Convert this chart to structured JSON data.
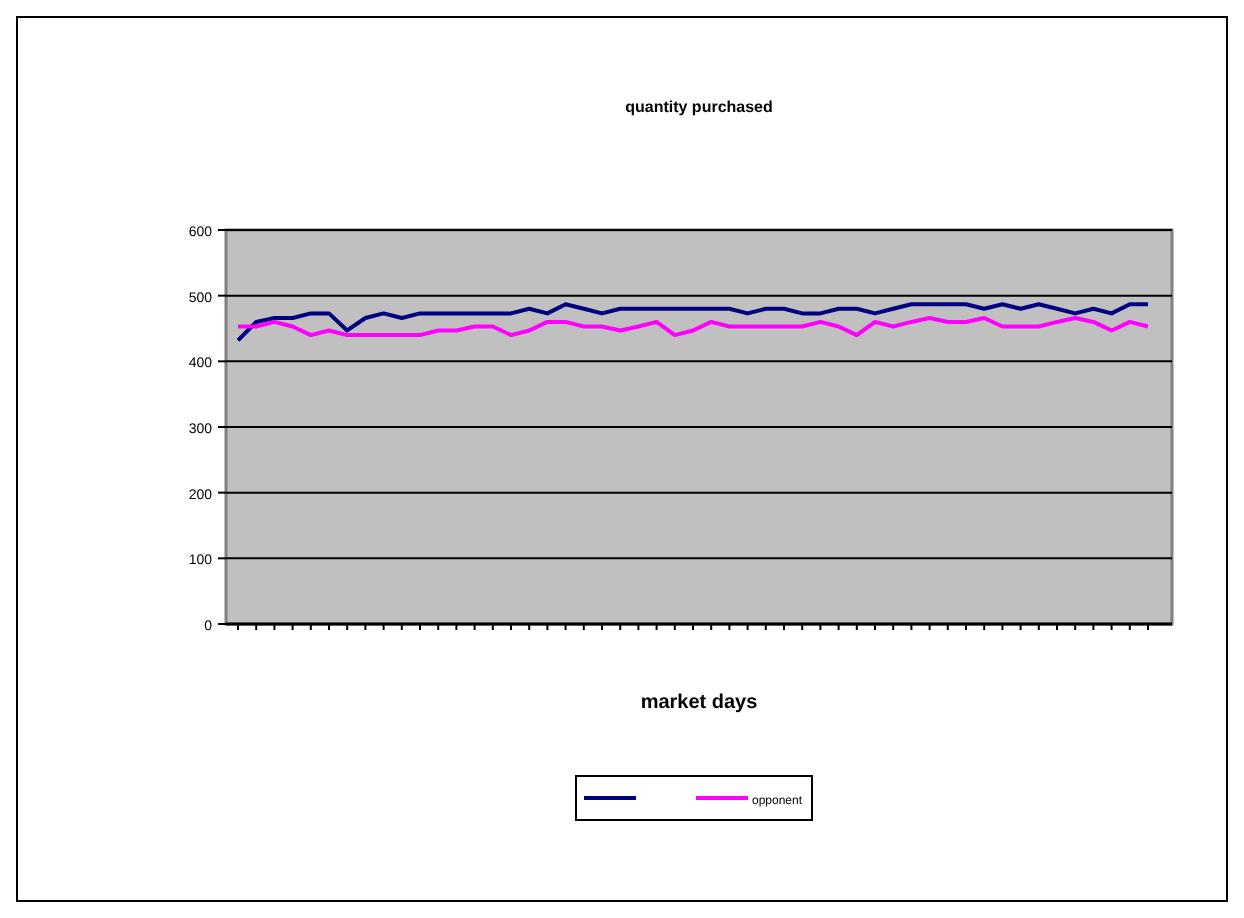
{
  "chart_data": {
    "type": "line",
    "title": "quantity purchased",
    "xlabel": "market days",
    "categories": [
      null,
      null,
      null,
      null,
      null,
      null,
      null,
      null,
      null,
      null,
      null,
      null,
      null,
      null,
      null,
      null,
      null,
      null,
      null,
      null,
      null,
      null,
      null,
      null,
      null,
      null,
      null,
      null,
      null,
      null,
      null,
      null,
      null,
      null,
      null,
      null,
      null,
      null,
      null,
      null,
      null,
      null,
      null,
      null,
      null,
      null,
      null,
      null,
      null,
      null,
      null
    ],
    "series": [
      {
        "color": "#000080",
        "values": [
          432,
          460,
          466,
          466,
          473,
          473,
          447,
          466,
          473,
          466,
          473,
          473,
          473,
          473,
          473,
          473,
          480,
          473,
          487,
          480,
          473,
          480,
          480,
          480,
          480,
          480,
          480,
          480,
          473,
          480,
          480,
          473,
          473,
          480,
          480,
          473,
          480,
          487,
          487,
          487,
          487,
          480,
          487,
          480,
          487,
          480,
          473,
          480,
          473,
          487,
          487
        ]
      },
      {
        "name": "opponent",
        "color": "#ff00ff",
        "values": [
          453,
          453,
          460,
          453,
          440,
          447,
          440,
          440,
          440,
          440,
          440,
          447,
          447,
          453,
          453,
          440,
          447,
          460,
          460,
          453,
          453,
          447,
          453,
          460,
          440,
          447,
          460,
          453,
          453,
          453,
          453,
          453,
          460,
          453,
          440,
          460,
          453,
          460,
          466,
          460,
          460,
          466,
          453,
          453,
          453,
          460,
          466,
          460,
          447,
          460,
          453
        ]
      }
    ],
    "ylim": [
      0,
      600
    ],
    "yticks": [
      0,
      100,
      200,
      300,
      400,
      500,
      600
    ],
    "grid": "y",
    "legend": "bottom",
    "line_style": "solid",
    "marker": "none"
  }
}
